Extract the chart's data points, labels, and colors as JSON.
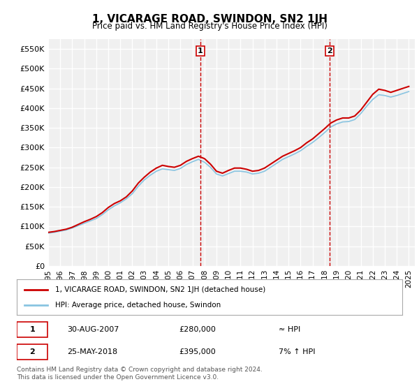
{
  "title": "1, VICARAGE ROAD, SWINDON, SN2 1JH",
  "subtitle": "Price paid vs. HM Land Registry's House Price Index (HPI)",
  "ylabel_ticks": [
    0,
    50000,
    100000,
    150000,
    200000,
    250000,
    300000,
    350000,
    400000,
    450000,
    500000,
    550000
  ],
  "ylabel_labels": [
    "£0",
    "£50K",
    "£100K",
    "£150K",
    "£200K",
    "£250K",
    "£300K",
    "£350K",
    "£400K",
    "£450K",
    "£500K",
    "£550K"
  ],
  "ylim": [
    0,
    575000
  ],
  "xlim_start": 1995.0,
  "xlim_end": 2025.5,
  "background_color": "#ffffff",
  "plot_background": "#f0f0f0",
  "grid_color": "#ffffff",
  "red_line_color": "#cc0000",
  "blue_line_color": "#89c4e1",
  "marker1_x": 2007.66,
  "marker1_y": 280000,
  "marker2_x": 2018.4,
  "marker2_y": 395000,
  "annotation_line_color": "#cc0000",
  "legend_label1": "1, VICARAGE ROAD, SWINDON, SN2 1JH (detached house)",
  "legend_label2": "HPI: Average price, detached house, Swindon",
  "table_row1": [
    "1",
    "30-AUG-2007",
    "£280,000",
    "≈ HPI"
  ],
  "table_row2": [
    "2",
    "25-MAY-2018",
    "£395,000",
    "7% ↑ HPI"
  ],
  "footer": "Contains HM Land Registry data © Crown copyright and database right 2024.\nThis data is licensed under the Open Government Licence v3.0.",
  "hpi_data_x": [
    1995.0,
    1995.5,
    1996.0,
    1996.5,
    1997.0,
    1997.5,
    1998.0,
    1998.5,
    1999.0,
    1999.5,
    2000.0,
    2000.5,
    2001.0,
    2001.5,
    2002.0,
    2002.5,
    2003.0,
    2003.5,
    2004.0,
    2004.5,
    2005.0,
    2005.5,
    2006.0,
    2006.5,
    2007.0,
    2007.5,
    2008.0,
    2008.5,
    2009.0,
    2009.5,
    2010.0,
    2010.5,
    2011.0,
    2011.5,
    2012.0,
    2012.5,
    2013.0,
    2013.5,
    2014.0,
    2014.5,
    2015.0,
    2015.5,
    2016.0,
    2016.5,
    2017.0,
    2017.5,
    2018.0,
    2018.5,
    2019.0,
    2019.5,
    2020.0,
    2020.5,
    2021.0,
    2021.5,
    2022.0,
    2022.5,
    2023.0,
    2023.5,
    2024.0,
    2024.5,
    2025.0
  ],
  "hpi_data_y": [
    85000,
    87000,
    90000,
    93000,
    98000,
    105000,
    112000,
    118000,
    125000,
    135000,
    148000,
    158000,
    165000,
    175000,
    190000,
    210000,
    225000,
    238000,
    248000,
    255000,
    252000,
    250000,
    255000,
    265000,
    272000,
    278000,
    272000,
    258000,
    240000,
    235000,
    242000,
    248000,
    248000,
    245000,
    240000,
    242000,
    248000,
    258000,
    268000,
    278000,
    285000,
    292000,
    300000,
    312000,
    322000,
    335000,
    348000,
    362000,
    370000,
    375000,
    375000,
    380000,
    395000,
    415000,
    435000,
    448000,
    445000,
    440000,
    445000,
    450000,
    455000
  ],
  "hpi_blue_x": [
    1995.0,
    1995.5,
    1996.0,
    1996.5,
    1997.0,
    1997.5,
    1998.0,
    1998.5,
    1999.0,
    1999.5,
    2000.0,
    2000.5,
    2001.0,
    2001.5,
    2002.0,
    2002.5,
    2003.0,
    2003.5,
    2004.0,
    2004.5,
    2005.0,
    2005.5,
    2006.0,
    2006.5,
    2007.0,
    2007.5,
    2008.0,
    2008.5,
    2009.0,
    2009.5,
    2010.0,
    2010.5,
    2011.0,
    2011.5,
    2012.0,
    2012.5,
    2013.0,
    2013.5,
    2014.0,
    2014.5,
    2015.0,
    2015.5,
    2016.0,
    2016.5,
    2017.0,
    2017.5,
    2018.0,
    2018.5,
    2019.0,
    2019.5,
    2020.0,
    2020.5,
    2021.0,
    2021.5,
    2022.0,
    2022.5,
    2023.0,
    2023.5,
    2024.0,
    2024.5,
    2025.0
  ],
  "hpi_blue_y": [
    83000,
    85000,
    88000,
    91000,
    96000,
    102000,
    108000,
    114000,
    120000,
    130000,
    142000,
    152000,
    160000,
    170000,
    183000,
    202000,
    218000,
    230000,
    240000,
    246000,
    244000,
    242000,
    247000,
    257000,
    264000,
    270000,
    263000,
    250000,
    233000,
    228000,
    234000,
    240000,
    240000,
    238000,
    233000,
    235000,
    240000,
    250000,
    260000,
    270000,
    277000,
    284000,
    292000,
    303000,
    313000,
    325000,
    338000,
    352000,
    360000,
    365000,
    366000,
    371000,
    386000,
    405000,
    422000,
    434000,
    432000,
    428000,
    432000,
    437000,
    442000
  ],
  "x_tick_years": [
    1995,
    1996,
    1997,
    1998,
    1999,
    2000,
    2001,
    2002,
    2003,
    2004,
    2005,
    2006,
    2007,
    2008,
    2009,
    2010,
    2011,
    2012,
    2013,
    2014,
    2015,
    2016,
    2017,
    2018,
    2019,
    2020,
    2021,
    2022,
    2023,
    2024,
    2025
  ]
}
